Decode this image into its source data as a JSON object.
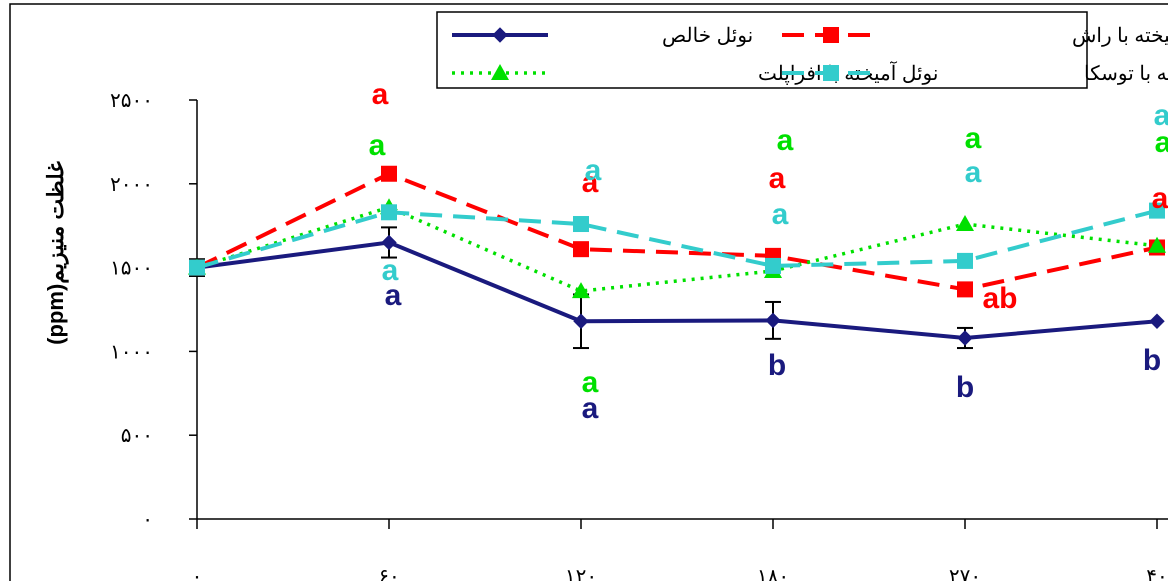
{
  "chart_data": {
    "type": "line",
    "x_tick_labels": [
      "۰",
      "۶۰",
      "۱۲۰",
      "۱۸۰",
      "۲۷۰",
      "۴۰"
    ],
    "y_tick_labels": [
      "۰",
      "۵۰۰",
      "۱۰۰۰",
      "۱۵۰۰",
      "۲۰۰۰",
      "۲۵۰۰"
    ],
    "ylabel": "غلظت منیزیم(ppm)",
    "ylim": [
      0,
      2500
    ],
    "y_ticks": [
      0,
      500,
      1000,
      1500,
      2000,
      2500
    ],
    "legend_position": "top-right",
    "grid": false,
    "series": [
      {
        "name": "نوئل خالص",
        "color": "#1a1a7e",
        "line_style": "solid",
        "marker": "diamond",
        "values": [
          1500,
          1650,
          1180,
          1185,
          1080,
          1180
        ],
        "errors": [
          50,
          90,
          160,
          110,
          60,
          0
        ],
        "letters": [
          "",
          "a",
          "a",
          "b",
          "b",
          "b"
        ]
      },
      {
        "name": "نوئل آمیخته با راش",
        "color": "#ff0000",
        "line_style": "dashed",
        "marker": "square",
        "values": [
          1500,
          2060,
          1610,
          1570,
          1370,
          1620
        ],
        "errors": [
          0,
          0,
          0,
          0,
          0,
          0
        ],
        "letters": [
          "",
          "a",
          "a",
          "a",
          "ab",
          "a"
        ]
      },
      {
        "name": "نوئل آمیخته با افراپلت",
        "color": "#00e000",
        "line_style": "dotted",
        "marker": "triangle",
        "values": [
          1500,
          1860,
          1360,
          1480,
          1760,
          1630
        ],
        "errors": [
          0,
          0,
          0,
          0,
          0,
          0
        ],
        "letters": [
          "",
          "a",
          "a",
          "a",
          "a",
          "a"
        ]
      },
      {
        "name": "نوئل آمیخته با توسکا",
        "color": "#33cccc",
        "line_style": "dashed",
        "marker": "square",
        "values": [
          1500,
          1830,
          1760,
          1510,
          1540,
          1840
        ],
        "errors": [
          0,
          0,
          0,
          0,
          0,
          0
        ],
        "letters": [
          "",
          "a",
          "a",
          "a",
          "a",
          "a"
        ]
      }
    ]
  }
}
